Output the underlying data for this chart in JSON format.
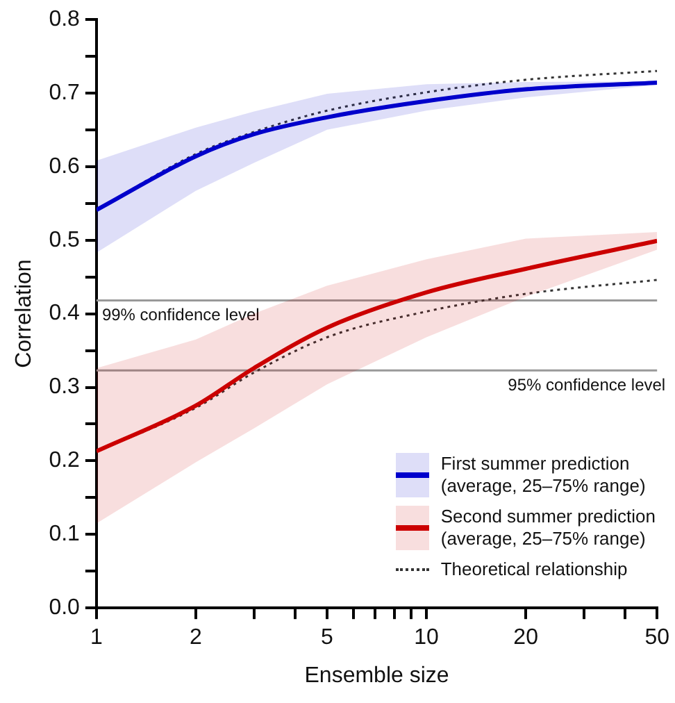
{
  "chart_data": {
    "type": "line",
    "xlabel": "Ensemble size",
    "ylabel": "Correlation",
    "log": "x",
    "xlim": [
      1,
      50
    ],
    "ylim": [
      0,
      0.8
    ],
    "xticks": [
      1,
      2,
      {
        "value": 3,
        "label": null
      },
      {
        "value": 4,
        "label": null
      },
      5,
      {
        "value": 6,
        "label": null
      },
      {
        "value": 7,
        "label": null
      },
      {
        "value": 8,
        "label": null
      },
      {
        "value": 9,
        "label": null
      },
      10,
      20,
      {
        "value": 30,
        "label": null
      },
      {
        "value": 40,
        "label": null
      },
      50
    ],
    "yticks": [
      {
        "value": 0,
        "label": "0.0"
      },
      {
        "value": 0.05,
        "label": null
      },
      0.1,
      {
        "value": 0.15,
        "label": null
      },
      0.2,
      {
        "value": 0.25,
        "label": null
      },
      0.3,
      {
        "value": 0.35,
        "label": null
      },
      0.4,
      {
        "value": 0.45,
        "label": null
      },
      0.5,
      {
        "value": 0.55,
        "label": null
      },
      0.6,
      {
        "value": 0.65,
        "label": null
      },
      0.7,
      {
        "value": 0.75,
        "label": null
      },
      0.8
    ],
    "grid": false,
    "legend": "bottom right",
    "marker": "none",
    "series": [
      {
        "name": "First summer prediction\n(average, 25–75% range)",
        "color": "#0000cc",
        "line_style": "solid",
        "x": [
          1,
          2,
          3,
          5,
          10,
          20,
          50
        ],
        "values": [
          0.541,
          0.614,
          0.644,
          0.667,
          0.689,
          0.705,
          0.714
        ],
        "lower": [
          0.483,
          0.567,
          0.605,
          0.65,
          0.676,
          0.694,
          0.711
        ],
        "upper": [
          0.608,
          0.653,
          0.675,
          0.699,
          0.712,
          0.715,
          0.716
        ]
      },
      {
        "name": "Second summer prediction\n(average, 25–75% range)",
        "color": "#cc0000",
        "line_style": "solid",
        "x": [
          1,
          2,
          3,
          5,
          10,
          20,
          50
        ],
        "values": [
          0.213,
          0.275,
          0.326,
          0.381,
          0.429,
          0.461,
          0.499
        ],
        "lower": [
          0.115,
          0.198,
          0.244,
          0.304,
          0.368,
          0.423,
          0.487
        ],
        "upper": [
          0.326,
          0.365,
          0.4,
          0.438,
          0.474,
          0.502,
          0.511
        ]
      },
      {
        "name": "Theoretical relationship",
        "color": "#333333",
        "line_style": "dotted",
        "x": [
          1,
          2,
          3,
          5,
          10,
          20,
          50
        ],
        "values": [
          0.541,
          0.617,
          0.647,
          0.676,
          0.701,
          0.718,
          0.73
        ]
      },
      {
        "color": "#333333",
        "line_style": "dotted",
        "x": [
          1,
          2,
          3,
          5,
          10,
          20,
          50
        ],
        "values": [
          0.213,
          0.272,
          0.32,
          0.368,
          0.403,
          0.427,
          0.446
        ]
      }
    ],
    "ref_lines": [
      {
        "axis": "y",
        "value": 0.418,
        "label": "99% confidence level",
        "color": "#999999"
      },
      {
        "axis": "y",
        "value": 0.323,
        "label": "95% confidence level",
        "color": "#999999"
      }
    ]
  }
}
